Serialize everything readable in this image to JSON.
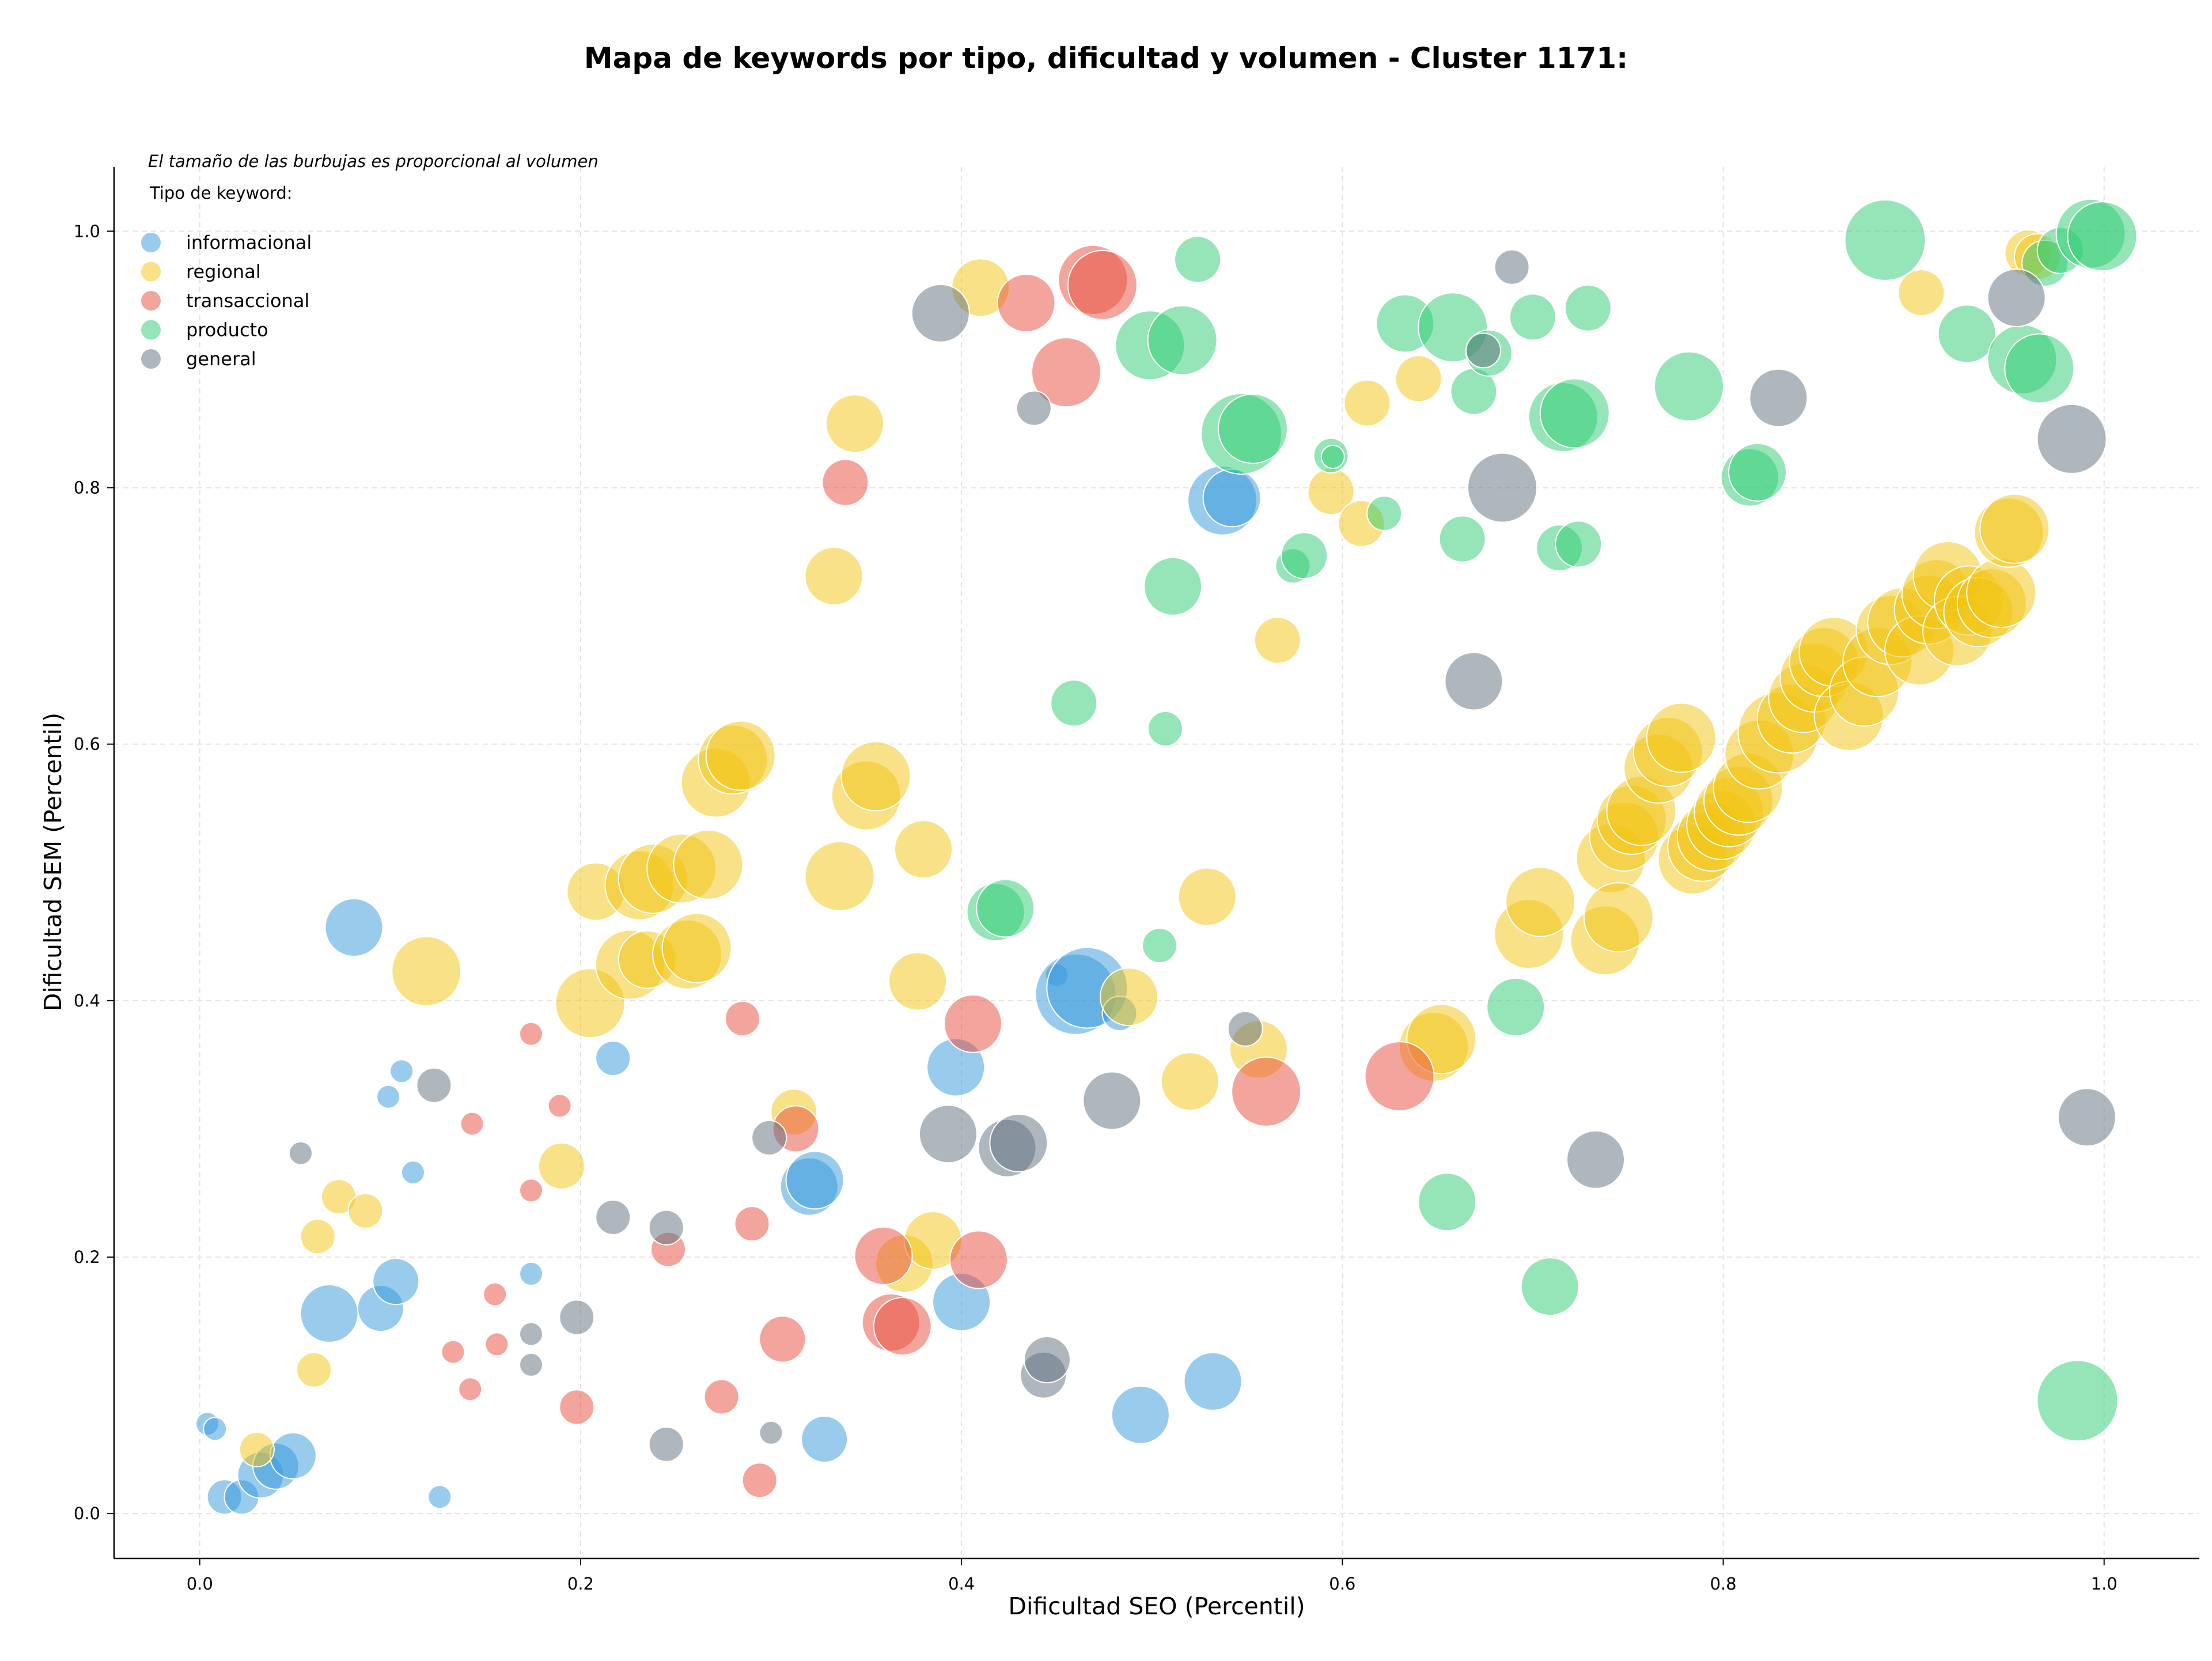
{
  "chart_data": {
    "type": "scatter",
    "title": "Mapa de keywords por tipo, dificultad y volumen - Cluster 1171:",
    "xlabel": "Dificultad SEO (Percentil)",
    "ylabel": "Dificultad SEM (Percentil)",
    "xlim": [
      -0.045,
      1.05
    ],
    "ylim": [
      -0.035,
      1.05
    ],
    "xticks": [
      "0.0",
      "0.2",
      "0.4",
      "0.6",
      "0.8",
      "1.0"
    ],
    "yticks": [
      "0.0",
      "0.2",
      "0.4",
      "0.6",
      "0.8",
      "1.0"
    ],
    "grid": true,
    "legend_position": "top-left",
    "legend_title": "Tipo de keyword:",
    "size_note": "El tamaño de las burbujas es proporcional al volumen",
    "series": [
      {
        "name": "informacional",
        "color": "#3498db",
        "points": [
          [
            0.004,
            0.07,
            1
          ],
          [
            0.008,
            0.066,
            1
          ],
          [
            0.013,
            0.013,
            2
          ],
          [
            0.022,
            0.013,
            2
          ],
          [
            0.032,
            0.03,
            3
          ],
          [
            0.04,
            0.037,
            3
          ],
          [
            0.049,
            0.045,
            3
          ],
          [
            0.068,
            0.156,
            4
          ],
          [
            0.081,
            0.457,
            4
          ],
          [
            0.095,
            0.16,
            3
          ],
          [
            0.099,
            0.325,
            1
          ],
          [
            0.103,
            0.181,
            3
          ],
          [
            0.106,
            0.345,
            1
          ],
          [
            0.112,
            0.266,
            1
          ],
          [
            0.126,
            0.013,
            1
          ],
          [
            0.174,
            0.187,
            1
          ],
          [
            0.217,
            0.355,
            2
          ],
          [
            0.32,
            0.255,
            4
          ],
          [
            0.323,
            0.26,
            4
          ],
          [
            0.328,
            0.058,
            3
          ],
          [
            0.397,
            0.348,
            4
          ],
          [
            0.4,
            0.165,
            4
          ],
          [
            0.45,
            0.42,
            1
          ],
          [
            0.46,
            0.405,
            6
          ],
          [
            0.466,
            0.41,
            6
          ],
          [
            0.483,
            0.39,
            2
          ],
          [
            0.494,
            0.077,
            4
          ],
          [
            0.532,
            0.103,
            4
          ],
          [
            0.537,
            0.79,
            5
          ],
          [
            0.542,
            0.792,
            4
          ]
        ]
      },
      {
        "name": "regional",
        "color": "#f1c40f",
        "points": [
          [
            0.03,
            0.05,
            2
          ],
          [
            0.06,
            0.112,
            2
          ],
          [
            0.062,
            0.216,
            2
          ],
          [
            0.073,
            0.247,
            2
          ],
          [
            0.087,
            0.236,
            2
          ],
          [
            0.119,
            0.423,
            5
          ],
          [
            0.19,
            0.271,
            3
          ],
          [
            0.205,
            0.398,
            5
          ],
          [
            0.208,
            0.485,
            4
          ],
          [
            0.226,
            0.428,
            5
          ],
          [
            0.231,
            0.49,
            5
          ],
          [
            0.235,
            0.432,
            4
          ],
          [
            0.238,
            0.495,
            5
          ],
          [
            0.253,
            0.503,
            5
          ],
          [
            0.256,
            0.436,
            5
          ],
          [
            0.261,
            0.441,
            5
          ],
          [
            0.267,
            0.506,
            5
          ],
          [
            0.271,
            0.57,
            5
          ],
          [
            0.28,
            0.588,
            5
          ],
          [
            0.284,
            0.591,
            5
          ],
          [
            0.312,
            0.313,
            3
          ],
          [
            0.333,
            0.731,
            4
          ],
          [
            0.336,
            0.497,
            5
          ],
          [
            0.344,
            0.85,
            4
          ],
          [
            0.35,
            0.56,
            5
          ],
          [
            0.355,
            0.575,
            5
          ],
          [
            0.37,
            0.195,
            4
          ],
          [
            0.377,
            0.415,
            4
          ],
          [
            0.38,
            0.518,
            4
          ],
          [
            0.385,
            0.213,
            4
          ],
          [
            0.41,
            0.956,
            4
          ],
          [
            0.488,
            0.403,
            4
          ],
          [
            0.52,
            0.337,
            4
          ],
          [
            0.529,
            0.481,
            4
          ],
          [
            0.556,
            0.362,
            4
          ],
          [
            0.566,
            0.681,
            3
          ],
          [
            0.594,
            0.797,
            3
          ],
          [
            0.61,
            0.772,
            3
          ],
          [
            0.613,
            0.866,
            3
          ],
          [
            0.64,
            0.885,
            3
          ],
          [
            0.648,
            0.364,
            5
          ],
          [
            0.652,
            0.37,
            5
          ],
          [
            0.698,
            0.452,
            5
          ],
          [
            0.704,
            0.477,
            5
          ],
          [
            0.738,
            0.447,
            5
          ],
          [
            0.741,
            0.511,
            5
          ],
          [
            0.745,
            0.465,
            5
          ],
          [
            0.748,
            0.528,
            5
          ],
          [
            0.752,
            0.541,
            5
          ],
          [
            0.757,
            0.548,
            5
          ],
          [
            0.766,
            0.581,
            5
          ],
          [
            0.771,
            0.594,
            5
          ],
          [
            0.778,
            0.605,
            5
          ],
          [
            0.784,
            0.51,
            5
          ],
          [
            0.789,
            0.52,
            5
          ],
          [
            0.794,
            0.528,
            5
          ],
          [
            0.799,
            0.537,
            5
          ],
          [
            0.803,
            0.547,
            5
          ],
          [
            0.808,
            0.556,
            5
          ],
          [
            0.813,
            0.566,
            5
          ],
          [
            0.819,
            0.592,
            5
          ],
          [
            0.829,
            0.609,
            6
          ],
          [
            0.836,
            0.62,
            5
          ],
          [
            0.842,
            0.636,
            5
          ],
          [
            0.848,
            0.652,
            5
          ],
          [
            0.853,
            0.664,
            5
          ],
          [
            0.858,
            0.672,
            5
          ],
          [
            0.866,
            0.622,
            5
          ],
          [
            0.874,
            0.641,
            5
          ],
          [
            0.881,
            0.664,
            5
          ],
          [
            0.888,
            0.689,
            5
          ],
          [
            0.894,
            0.695,
            5
          ],
          [
            0.903,
            0.673,
            5
          ],
          [
            0.908,
            0.705,
            5
          ],
          [
            0.912,
            0.717,
            5
          ],
          [
            0.918,
            0.731,
            5
          ],
          [
            0.923,
            0.688,
            5
          ],
          [
            0.929,
            0.712,
            5
          ],
          [
            0.934,
            0.703,
            5
          ],
          [
            0.941,
            0.71,
            5
          ],
          [
            0.946,
            0.718,
            5
          ],
          [
            0.95,
            0.765,
            5
          ],
          [
            0.953,
            0.768,
            5
          ],
          [
            0.904,
            0.952,
            3
          ],
          [
            0.96,
            0.983,
            3
          ],
          [
            0.965,
            0.98,
            3
          ]
        ]
      },
      {
        "name": "transaccional",
        "color": "#e74c3c",
        "points": [
          [
            0.133,
            0.126,
            1
          ],
          [
            0.142,
            0.097,
            1
          ],
          [
            0.143,
            0.304,
            1
          ],
          [
            0.155,
            0.171,
            1
          ],
          [
            0.156,
            0.132,
            1
          ],
          [
            0.174,
            0.374,
            1
          ],
          [
            0.174,
            0.252,
            1
          ],
          [
            0.189,
            0.318,
            1
          ],
          [
            0.198,
            0.083,
            2
          ],
          [
            0.246,
            0.206,
            2
          ],
          [
            0.274,
            0.091,
            2
          ],
          [
            0.285,
            0.386,
            2
          ],
          [
            0.29,
            0.226,
            2
          ],
          [
            0.294,
            0.026,
            2
          ],
          [
            0.306,
            0.136,
            3
          ],
          [
            0.313,
            0.3,
            3
          ],
          [
            0.339,
            0.804,
            3
          ],
          [
            0.359,
            0.201,
            4
          ],
          [
            0.363,
            0.149,
            4
          ],
          [
            0.369,
            0.146,
            4
          ],
          [
            0.406,
            0.382,
            4
          ],
          [
            0.409,
            0.198,
            4
          ],
          [
            0.434,
            0.944,
            4
          ],
          [
            0.455,
            0.89,
            5
          ],
          [
            0.469,
            0.962,
            5
          ],
          [
            0.474,
            0.958,
            5
          ],
          [
            0.56,
            0.329,
            5
          ],
          [
            0.63,
            0.341,
            5
          ]
        ]
      },
      {
        "name": "producto",
        "color": "#2ecc71",
        "points": [
          [
            0.418,
            0.469,
            4
          ],
          [
            0.423,
            0.472,
            4
          ],
          [
            0.459,
            0.632,
            3
          ],
          [
            0.499,
            0.911,
            5
          ],
          [
            0.504,
            0.443,
            2
          ],
          [
            0.507,
            0.612,
            2
          ],
          [
            0.511,
            0.723,
            4
          ],
          [
            0.516,
            0.915,
            5
          ],
          [
            0.524,
            0.978,
            3
          ],
          [
            0.547,
            0.842,
            6
          ],
          [
            0.553,
            0.846,
            5
          ],
          [
            0.574,
            0.739,
            2
          ],
          [
            0.58,
            0.747,
            3
          ],
          [
            0.594,
            0.825,
            2
          ],
          [
            0.595,
            0.824,
            1
          ],
          [
            0.622,
            0.78,
            2
          ],
          [
            0.633,
            0.928,
            4
          ],
          [
            0.655,
            0.243,
            4
          ],
          [
            0.658,
            0.925,
            5
          ],
          [
            0.663,
            0.76,
            3
          ],
          [
            0.669,
            0.875,
            3
          ],
          [
            0.677,
            0.905,
            3
          ],
          [
            0.691,
            0.395,
            4
          ],
          [
            0.7,
            0.933,
            3
          ],
          [
            0.709,
            0.177,
            4
          ],
          [
            0.714,
            0.753,
            3
          ],
          [
            0.716,
            0.855,
            5
          ],
          [
            0.722,
            0.858,
            5
          ],
          [
            0.724,
            0.756,
            3
          ],
          [
            0.729,
            0.94,
            3
          ],
          [
            0.782,
            0.879,
            5
          ],
          [
            0.814,
            0.808,
            4
          ],
          [
            0.818,
            0.812,
            4
          ],
          [
            0.885,
            0.993,
            6
          ],
          [
            0.928,
            0.92,
            4
          ],
          [
            0.957,
            0.9,
            5
          ],
          [
            0.966,
            0.893,
            5
          ],
          [
            0.969,
            0.975,
            3
          ],
          [
            0.977,
            0.985,
            3
          ],
          [
            0.986,
            0.088,
            6
          ],
          [
            0.993,
            0.998,
            5
          ],
          [
            0.999,
            0.996,
            5
          ]
        ]
      },
      {
        "name": "general",
        "color": "#5d6d7e",
        "points": [
          [
            0.053,
            0.281,
            1
          ],
          [
            0.123,
            0.334,
            2
          ],
          [
            0.174,
            0.14,
            1
          ],
          [
            0.174,
            0.116,
            1
          ],
          [
            0.198,
            0.153,
            2
          ],
          [
            0.217,
            0.231,
            2
          ],
          [
            0.245,
            0.223,
            2
          ],
          [
            0.245,
            0.054,
            2
          ],
          [
            0.299,
            0.293,
            2
          ],
          [
            0.3,
            0.063,
            1
          ],
          [
            0.389,
            0.936,
            4
          ],
          [
            0.393,
            0.296,
            4
          ],
          [
            0.424,
            0.285,
            4
          ],
          [
            0.43,
            0.289,
            4
          ],
          [
            0.438,
            0.862,
            2
          ],
          [
            0.443,
            0.108,
            3
          ],
          [
            0.445,
            0.12,
            3
          ],
          [
            0.479,
            0.322,
            4
          ],
          [
            0.549,
            0.378,
            2
          ],
          [
            0.669,
            0.649,
            4
          ],
          [
            0.684,
            0.8,
            5
          ],
          [
            0.689,
            0.972,
            2
          ],
          [
            0.674,
            0.907,
            2
          ],
          [
            0.733,
            0.276,
            4
          ],
          [
            0.829,
            0.87,
            4
          ],
          [
            0.954,
            0.948,
            4
          ],
          [
            0.983,
            0.838,
            5
          ],
          [
            0.991,
            0.309,
            4
          ]
        ]
      }
    ]
  }
}
